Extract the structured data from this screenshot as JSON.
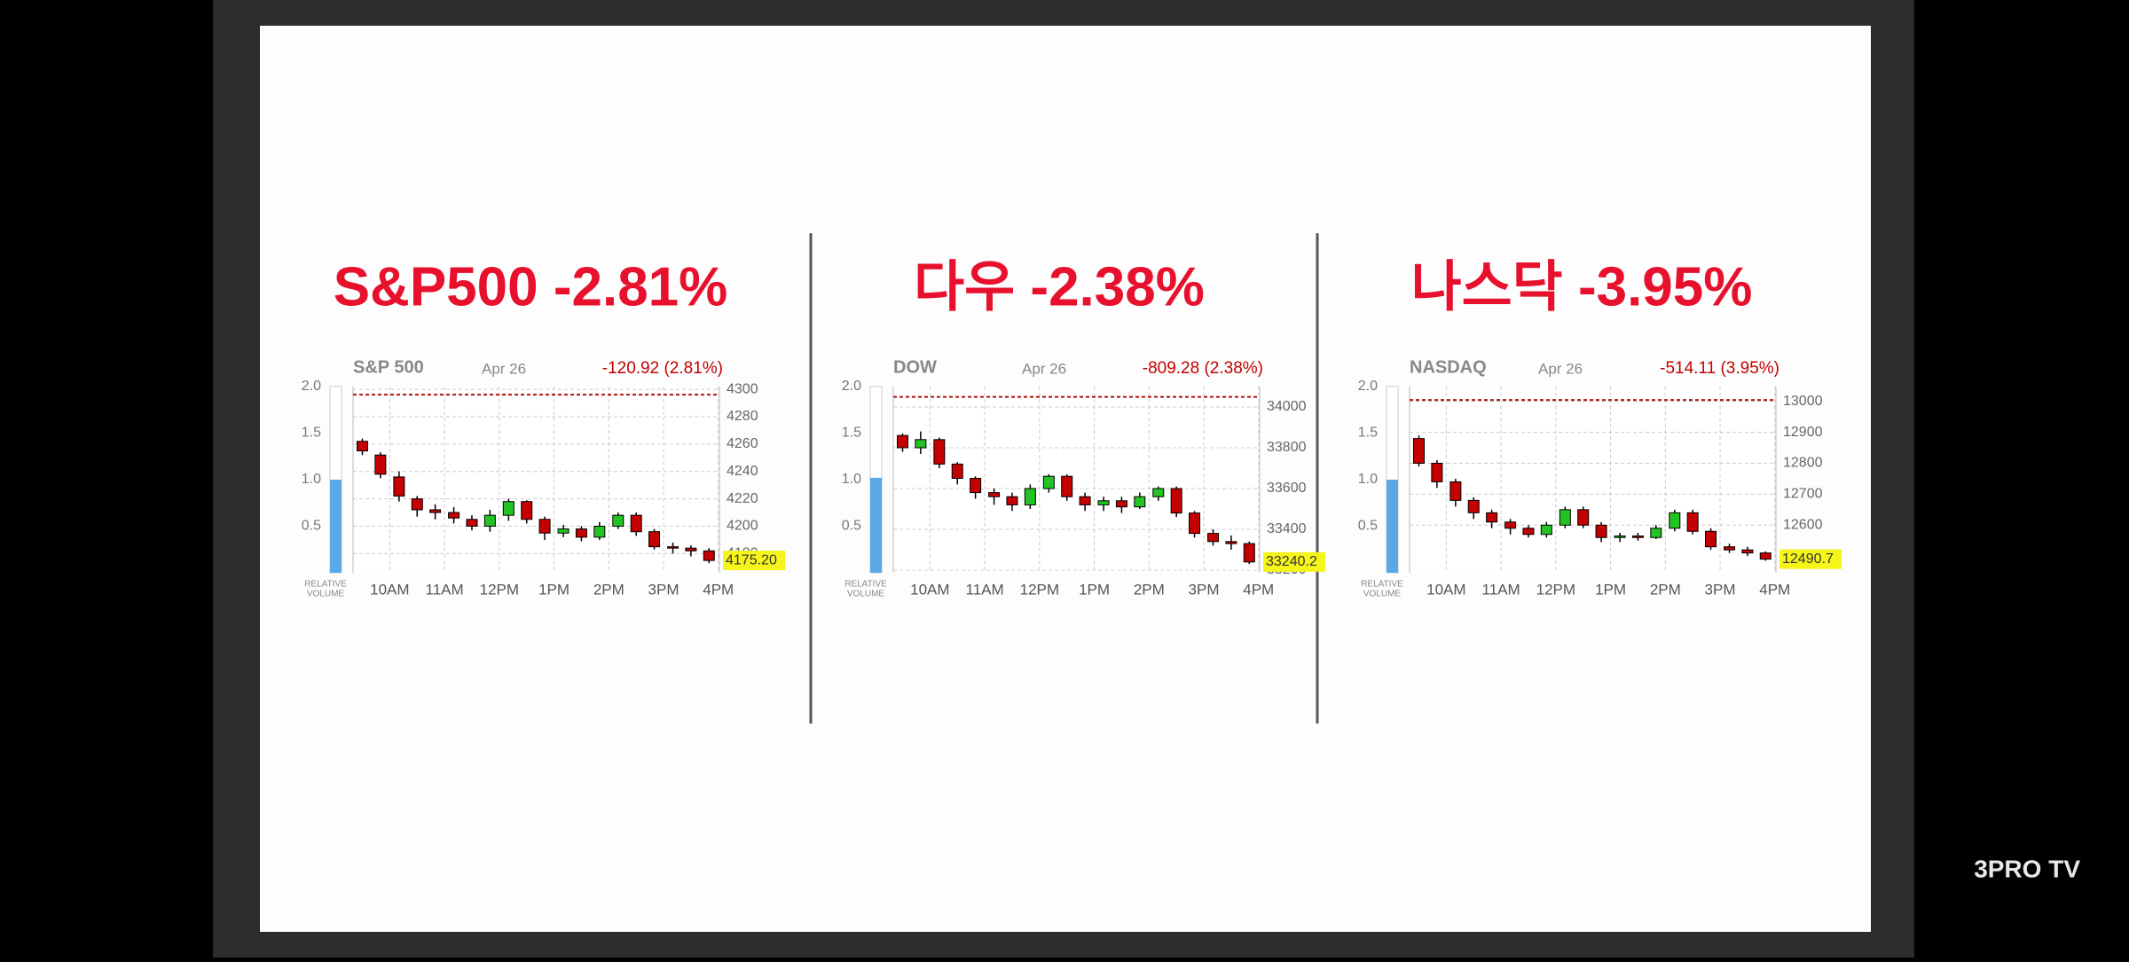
{
  "chart_data": [
    {
      "type": "candlestick",
      "title": "S&P500 -2.81%",
      "name": "S&P 500",
      "date": "Apr 26",
      "change": "-120.92 (2.81%)",
      "last_price": "4175.20",
      "volume_label": [
        "RELATIVE",
        "VOLUME"
      ],
      "relative_volume": 1.0,
      "reference": 4296.12,
      "up_color": "#22c322",
      "down_color": "#c40000",
      "volume_color": "#5aa9e6",
      "x": [
        9.5,
        9.83,
        10.17,
        10.5,
        10.83,
        11.17,
        11.5,
        11.83,
        12.17,
        12.5,
        12.83,
        13.17,
        13.5,
        13.83,
        14.17,
        14.5,
        14.83,
        15.17,
        15.5,
        15.83
      ],
      "open": [
        4262,
        4252,
        4236,
        4220,
        4212,
        4210,
        4205,
        4200,
        4208,
        4218,
        4205,
        4195,
        4198,
        4192,
        4200,
        4208,
        4196,
        4185,
        4184,
        4182
      ],
      "close": [
        4255,
        4238,
        4222,
        4212,
        4210,
        4206,
        4200,
        4208,
        4218,
        4205,
        4195,
        4198,
        4192,
        4200,
        4208,
        4196,
        4185,
        4184,
        4182,
        4175
      ],
      "high": [
        4264,
        4254,
        4240,
        4222,
        4216,
        4214,
        4208,
        4212,
        4220,
        4219,
        4207,
        4201,
        4200,
        4203,
        4210,
        4210,
        4198,
        4188,
        4186,
        4184
      ],
      "low": [
        4252,
        4235,
        4218,
        4207,
        4205,
        4202,
        4197,
        4196,
        4204,
        4202,
        4190,
        4192,
        4189,
        4190,
        4198,
        4193,
        4183,
        4180,
        4178,
        4173
      ],
      "xlim": [
        9.33,
        16.02
      ],
      "xticks": [
        {
          "value": 10,
          "label": "10AM"
        },
        {
          "value": 11,
          "label": "11AM"
        },
        {
          "value": 12,
          "label": "12PM"
        },
        {
          "value": 13,
          "label": "1PM"
        },
        {
          "value": 14,
          "label": "2PM"
        },
        {
          "value": 15,
          "label": "3PM"
        },
        {
          "value": 16,
          "label": "4PM"
        }
      ],
      "ylim": [
        4166,
        4302
      ],
      "yticks": [
        4180,
        4200,
        4220,
        4240,
        4260,
        4280,
        4300
      ],
      "y2lim": [
        0,
        2.0
      ],
      "y2ticks": [
        0.5,
        {
          "value": 1.0,
          "label": "1.0"
        },
        1.5,
        {
          "value": 2.0,
          "label": "2.0"
        }
      ],
      "grid": true
    },
    {
      "type": "candlestick",
      "title": "다우 -2.38%",
      "name": "DOW",
      "date": "Apr 26",
      "change": "-809.28 (2.38%)",
      "last_price": "33240.2",
      "volume_label": [
        "RELATIVE",
        "VOLUME"
      ],
      "relative_volume": 1.02,
      "reference": 34049.48,
      "up_color": "#22c322",
      "down_color": "#c40000",
      "volume_color": "#5aa9e6",
      "x": [
        9.5,
        9.83,
        10.17,
        10.5,
        10.83,
        11.17,
        11.5,
        11.83,
        12.17,
        12.5,
        12.83,
        13.17,
        13.5,
        13.83,
        14.17,
        14.5,
        14.83,
        15.17,
        15.5,
        15.83
      ],
      "open": [
        33860,
        33800,
        33840,
        33720,
        33650,
        33580,
        33560,
        33520,
        33600,
        33660,
        33560,
        33520,
        33540,
        33510,
        33560,
        33600,
        33480,
        33380,
        33340,
        33330
      ],
      "close": [
        33800,
        33840,
        33720,
        33650,
        33580,
        33560,
        33520,
        33600,
        33660,
        33560,
        33520,
        33540,
        33510,
        33560,
        33600,
        33480,
        33380,
        33340,
        33330,
        33240
      ],
      "high": [
        33870,
        33880,
        33850,
        33730,
        33660,
        33600,
        33580,
        33620,
        33670,
        33670,
        33580,
        33560,
        33560,
        33580,
        33610,
        33610,
        33490,
        33400,
        33370,
        33340
      ],
      "low": [
        33780,
        33770,
        33700,
        33620,
        33550,
        33520,
        33490,
        33500,
        33580,
        33540,
        33490,
        33490,
        33480,
        33500,
        33540,
        33460,
        33360,
        33320,
        33300,
        33230
      ],
      "xlim": [
        9.33,
        16.02
      ],
      "xticks": [
        {
          "value": 10,
          "label": "10AM"
        },
        {
          "value": 11,
          "label": "11AM"
        },
        {
          "value": 12,
          "label": "12PM"
        },
        {
          "value": 13,
          "label": "1PM"
        },
        {
          "value": 14,
          "label": "2PM"
        },
        {
          "value": 15,
          "label": "3PM"
        },
        {
          "value": 16,
          "label": "4PM"
        }
      ],
      "ylim": [
        33187,
        34100
      ],
      "yticks": [
        33200,
        33400,
        33600,
        33800,
        34000
      ],
      "y2lim": [
        0,
        2.0
      ],
      "y2ticks": [
        0.5,
        {
          "value": 1.0,
          "label": "1.0"
        },
        1.5,
        {
          "value": 2.0,
          "label": "2.0"
        }
      ],
      "grid": true
    },
    {
      "type": "candlestick",
      "title": "나스닥 -3.95%",
      "name": "NASDAQ",
      "date": "Apr 26",
      "change": "-514.11 (3.95%)",
      "last_price": "12490.7",
      "volume_label": [
        "RELATIVE",
        "VOLUME"
      ],
      "relative_volume": 1.0,
      "reference": 13004.81,
      "up_color": "#22c322",
      "down_color": "#c40000",
      "volume_color": "#5aa9e6",
      "x": [
        9.5,
        9.83,
        10.17,
        10.5,
        10.83,
        11.17,
        11.5,
        11.83,
        12.17,
        12.5,
        12.83,
        13.17,
        13.5,
        13.83,
        14.17,
        14.5,
        14.83,
        15.17,
        15.5,
        15.83
      ],
      "open": [
        12880,
        12800,
        12740,
        12680,
        12640,
        12610,
        12590,
        12570,
        12600,
        12650,
        12600,
        12560,
        12565,
        12560,
        12590,
        12640,
        12580,
        12530,
        12520,
        12510
      ],
      "close": [
        12800,
        12740,
        12680,
        12640,
        12610,
        12590,
        12570,
        12600,
        12650,
        12600,
        12560,
        12565,
        12560,
        12590,
        12640,
        12580,
        12530,
        12520,
        12510,
        12490
      ],
      "high": [
        12890,
        12810,
        12750,
        12690,
        12650,
        12620,
        12600,
        12610,
        12660,
        12660,
        12610,
        12575,
        12575,
        12600,
        12650,
        12650,
        12590,
        12540,
        12530,
        12515
      ],
      "low": [
        12790,
        12720,
        12660,
        12620,
        12590,
        12570,
        12560,
        12560,
        12590,
        12590,
        12545,
        12545,
        12550,
        12555,
        12580,
        12570,
        12520,
        12510,
        12500,
        12485
      ],
      "xlim": [
        9.33,
        16.02
      ],
      "xticks": [
        {
          "value": 10,
          "label": "10AM"
        },
        {
          "value": 11,
          "label": "11AM"
        },
        {
          "value": 12,
          "label": "12PM"
        },
        {
          "value": 13,
          "label": "1PM"
        },
        {
          "value": 14,
          "label": "2PM"
        },
        {
          "value": 15,
          "label": "3PM"
        },
        {
          "value": 16,
          "label": "4PM"
        }
      ],
      "ylim": [
        12446,
        13048
      ],
      "yticks": [
        12600,
        12700,
        12800,
        12900,
        13000
      ],
      "y2lim": [
        0,
        2.0
      ],
      "y2ticks": [
        0.5,
        {
          "value": 1.0,
          "label": "1.0"
        },
        1.5,
        {
          "value": 2.0,
          "label": "2.0"
        }
      ],
      "grid": true
    }
  ],
  "brand": "3PRO TV"
}
